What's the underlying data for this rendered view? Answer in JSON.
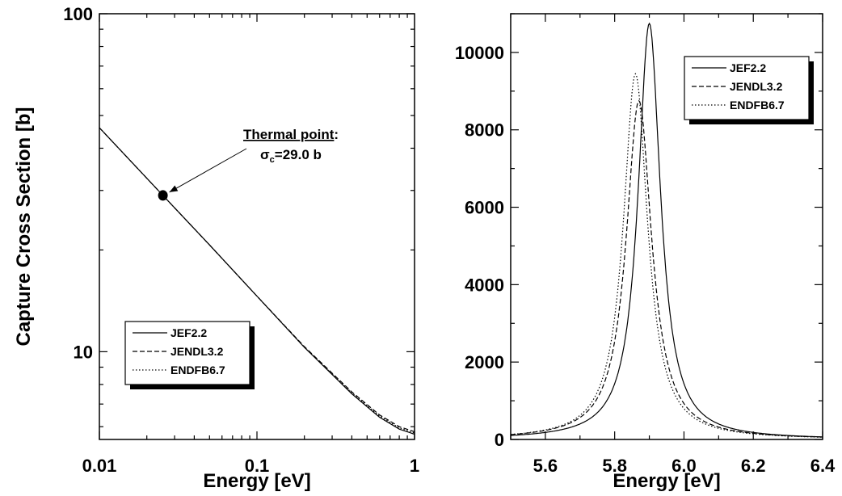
{
  "chart_data": [
    {
      "type": "line",
      "xscale": "log",
      "yscale": "log",
      "xlim": [
        0.01,
        1
      ],
      "ylim": [
        5.5,
        100
      ],
      "xlabel": "Energy [eV]",
      "ylabel": "Capture Cross Section [b]",
      "xticks": [
        {
          "v": 0.01,
          "label": "0.01"
        },
        {
          "v": 0.1,
          "label": "0.1"
        },
        {
          "v": 1,
          "label": "1"
        }
      ],
      "yticks": [
        {
          "v": 10,
          "label": "10"
        },
        {
          "v": 100,
          "label": "100"
        }
      ],
      "grid": false,
      "legend": "bottom-left",
      "series": [
        {
          "name": "JEF2.2",
          "dash": "solid",
          "x": [
            0.01,
            0.0253,
            0.05,
            0.1,
            0.2,
            0.4,
            0.6,
            0.8,
            1.0
          ],
          "y": [
            46,
            29.0,
            20.7,
            14.6,
            10.3,
            7.5,
            6.4,
            5.9,
            5.7
          ]
        },
        {
          "name": "JENDL3.2",
          "dash": "dashed",
          "x": [
            0.01,
            0.0253,
            0.05,
            0.1,
            0.2,
            0.4,
            0.6,
            0.8,
            1.0
          ],
          "y": [
            46,
            29.0,
            20.7,
            14.6,
            10.35,
            7.6,
            6.5,
            6.0,
            5.8
          ]
        },
        {
          "name": "ENDFB6.7",
          "dash": "dotted",
          "x": [
            0.01,
            0.0253,
            0.05,
            0.1,
            0.2,
            0.4,
            0.6,
            0.8,
            1.0
          ],
          "y": [
            46,
            29.0,
            20.7,
            14.6,
            10.3,
            7.55,
            6.45,
            5.95,
            5.75
          ]
        }
      ],
      "marker": {
        "x": 0.0253,
        "y": 29.0
      },
      "annotation": {
        "title": "Thermal point",
        "colon": ":",
        "sigma": "σ",
        "subscript": "c",
        "value": "=29.0 b"
      }
    },
    {
      "type": "line",
      "xlim": [
        5.5,
        6.4
      ],
      "ylim": [
        0,
        11000
      ],
      "xlabel": "Energy [eV]",
      "ylabel": "",
      "xticks": [
        {
          "v": 5.6,
          "label": "5.6"
        },
        {
          "v": 5.8,
          "label": "5.8"
        },
        {
          "v": 6.0,
          "label": "6.0"
        },
        {
          "v": 6.2,
          "label": "6.2"
        },
        {
          "v": 6.4,
          "label": "6.4"
        }
      ],
      "yticks": [
        {
          "v": 0,
          "label": "0"
        },
        {
          "v": 2000,
          "label": "2000"
        },
        {
          "v": 4000,
          "label": "4000"
        },
        {
          "v": 6000,
          "label": "6000"
        },
        {
          "v": 8000,
          "label": "8000"
        },
        {
          "v": 10000,
          "label": "10000"
        }
      ],
      "grid": false,
      "legend": "top-right",
      "series": [
        {
          "name": "JEF2.2",
          "dash": "solid",
          "E0": 5.9,
          "gamma": 0.0787,
          "peak": 10750
        },
        {
          "name": "JENDL3.2",
          "dash": "dashed",
          "E0": 5.87,
          "gamma": 0.0895,
          "peak": 8750
        },
        {
          "name": "ENDFB6.7",
          "dash": "dotted",
          "E0": 5.86,
          "gamma": 0.085,
          "peak": 9450
        }
      ]
    }
  ]
}
